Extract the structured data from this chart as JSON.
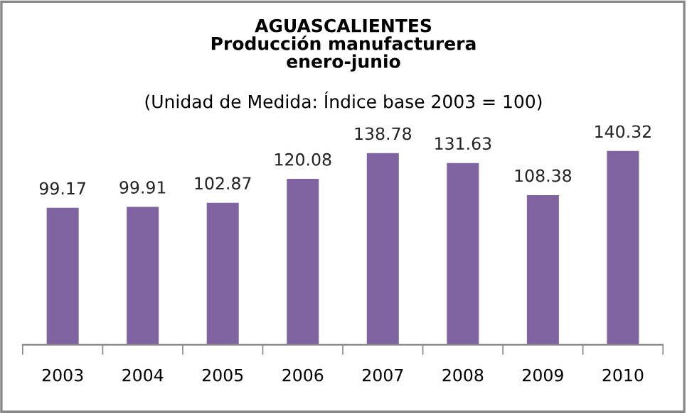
{
  "chart_data": {
    "type": "bar",
    "title": "AGUASCALIENTES\nProducción manufacturera\nenero-junio",
    "subtitle": "(Unidad de Medida: Índice base 2003 = 100)",
    "categories": [
      "2003",
      "2004",
      "2005",
      "2006",
      "2007",
      "2008",
      "2009",
      "2010"
    ],
    "values": [
      99.17,
      99.91,
      102.87,
      120.08,
      138.78,
      131.63,
      108.38,
      140.32
    ],
    "color": "#8064a2",
    "data_labels": true,
    "grid": false,
    "legend": false,
    "tick_labels": "x"
  }
}
